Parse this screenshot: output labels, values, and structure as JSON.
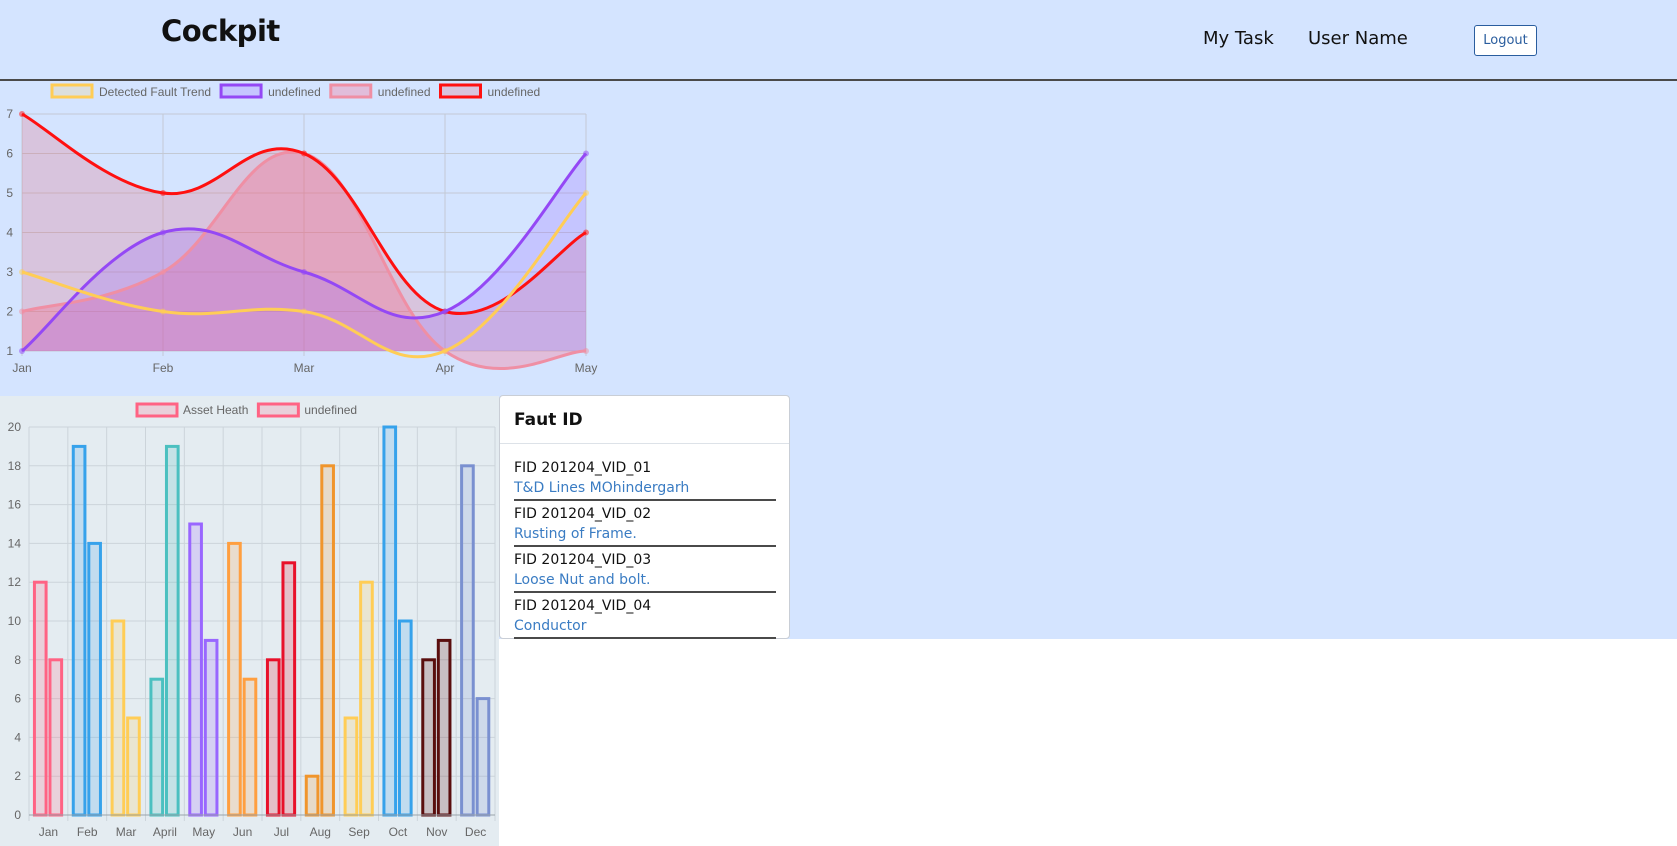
{
  "header": {
    "brand": "Cockpit",
    "nav": {
      "my_task": "My Task",
      "user_name": "User Name",
      "logout": "Logout"
    }
  },
  "fault_card": {
    "title": "Faut ID",
    "items": [
      {
        "id": "FID 201204_VID_01",
        "desc": "T&D Lines MOhindergarh"
      },
      {
        "id": "FID 201204_VID_02",
        "desc": "Rusting of Frame."
      },
      {
        "id": "FID 201204_VID_03",
        "desc": "Loose Nut and bolt."
      },
      {
        "id": "FID 201204_VID_04",
        "desc": "Conductor"
      }
    ]
  },
  "chart_data": [
    {
      "type": "line",
      "categories": [
        "Jan",
        "Feb",
        "Mar",
        "Apr",
        "May"
      ],
      "ylim": [
        1,
        7
      ],
      "yticks": [
        1,
        2,
        3,
        4,
        5,
        6,
        7
      ],
      "grid": true,
      "legend_position": "top",
      "series": [
        {
          "name": "Detected Fault Trend",
          "values": [
            3,
            2,
            2,
            1,
            5
          ],
          "color": "#ffcd56",
          "fill": false
        },
        {
          "name": "undefined",
          "values": [
            1,
            4,
            3,
            2,
            6
          ],
          "color": "#9448f5",
          "fill": true,
          "fillColor": "rgba(153,102,255,0.25)"
        },
        {
          "name": "undefined",
          "values": [
            2,
            3,
            6,
            1,
            1
          ],
          "color": "#ef8fa4",
          "fill": true,
          "fillColor": "rgba(255,99,132,0.3)"
        },
        {
          "name": "undefined",
          "values": [
            7,
            5,
            6,
            2,
            4
          ],
          "color": "#ff1010",
          "fill": true,
          "fillColor": "rgba(230,80,100,0.22)"
        }
      ]
    },
    {
      "type": "bar",
      "categories": [
        "Jan",
        "Feb",
        "Mar",
        "April",
        "May",
        "Jun",
        "Jul",
        "Aug",
        "Sep",
        "Oct",
        "Nov",
        "Dec"
      ],
      "ylim": [
        0,
        20
      ],
      "yticks": [
        0,
        2,
        4,
        6,
        8,
        10,
        12,
        14,
        16,
        18,
        20
      ],
      "grid": true,
      "legend_position": "top",
      "series": [
        {
          "name": "Asset Heath",
          "values": [
            12,
            19,
            10,
            7,
            15,
            14,
            8,
            2,
            5,
            20,
            8,
            18
          ]
        },
        {
          "name": "undefined",
          "values": [
            8,
            14,
            5,
            19,
            9,
            7,
            13,
            18,
            12,
            10,
            9,
            6
          ]
        }
      ],
      "category_colors": [
        "#ff6384",
        "#36a2eb",
        "#ffcd56",
        "#4bc0c0",
        "#9966ff",
        "#ff9f40",
        "#e8102a",
        "#f0952c",
        "#ffcd56",
        "#36a2eb",
        "#5a0e0e",
        "#7a90d0"
      ],
      "category_fills": [
        "rgba(255,99,132,0.2)",
        "rgba(54,162,235,0.2)",
        "rgba(255,205,86,0.2)",
        "rgba(75,192,192,0.2)",
        "rgba(153,102,255,0.2)",
        "rgba(255,159,64,0.2)",
        "rgba(232,16,42,0.2)",
        "rgba(240,149,44,0.2)",
        "rgba(255,205,86,0.2)",
        "rgba(54,162,235,0.2)",
        "rgba(90,14,14,0.2)",
        "rgba(122,144,208,0.2)"
      ],
      "legend_colors": [
        "#ff6384",
        "#ff6384"
      ]
    }
  ]
}
